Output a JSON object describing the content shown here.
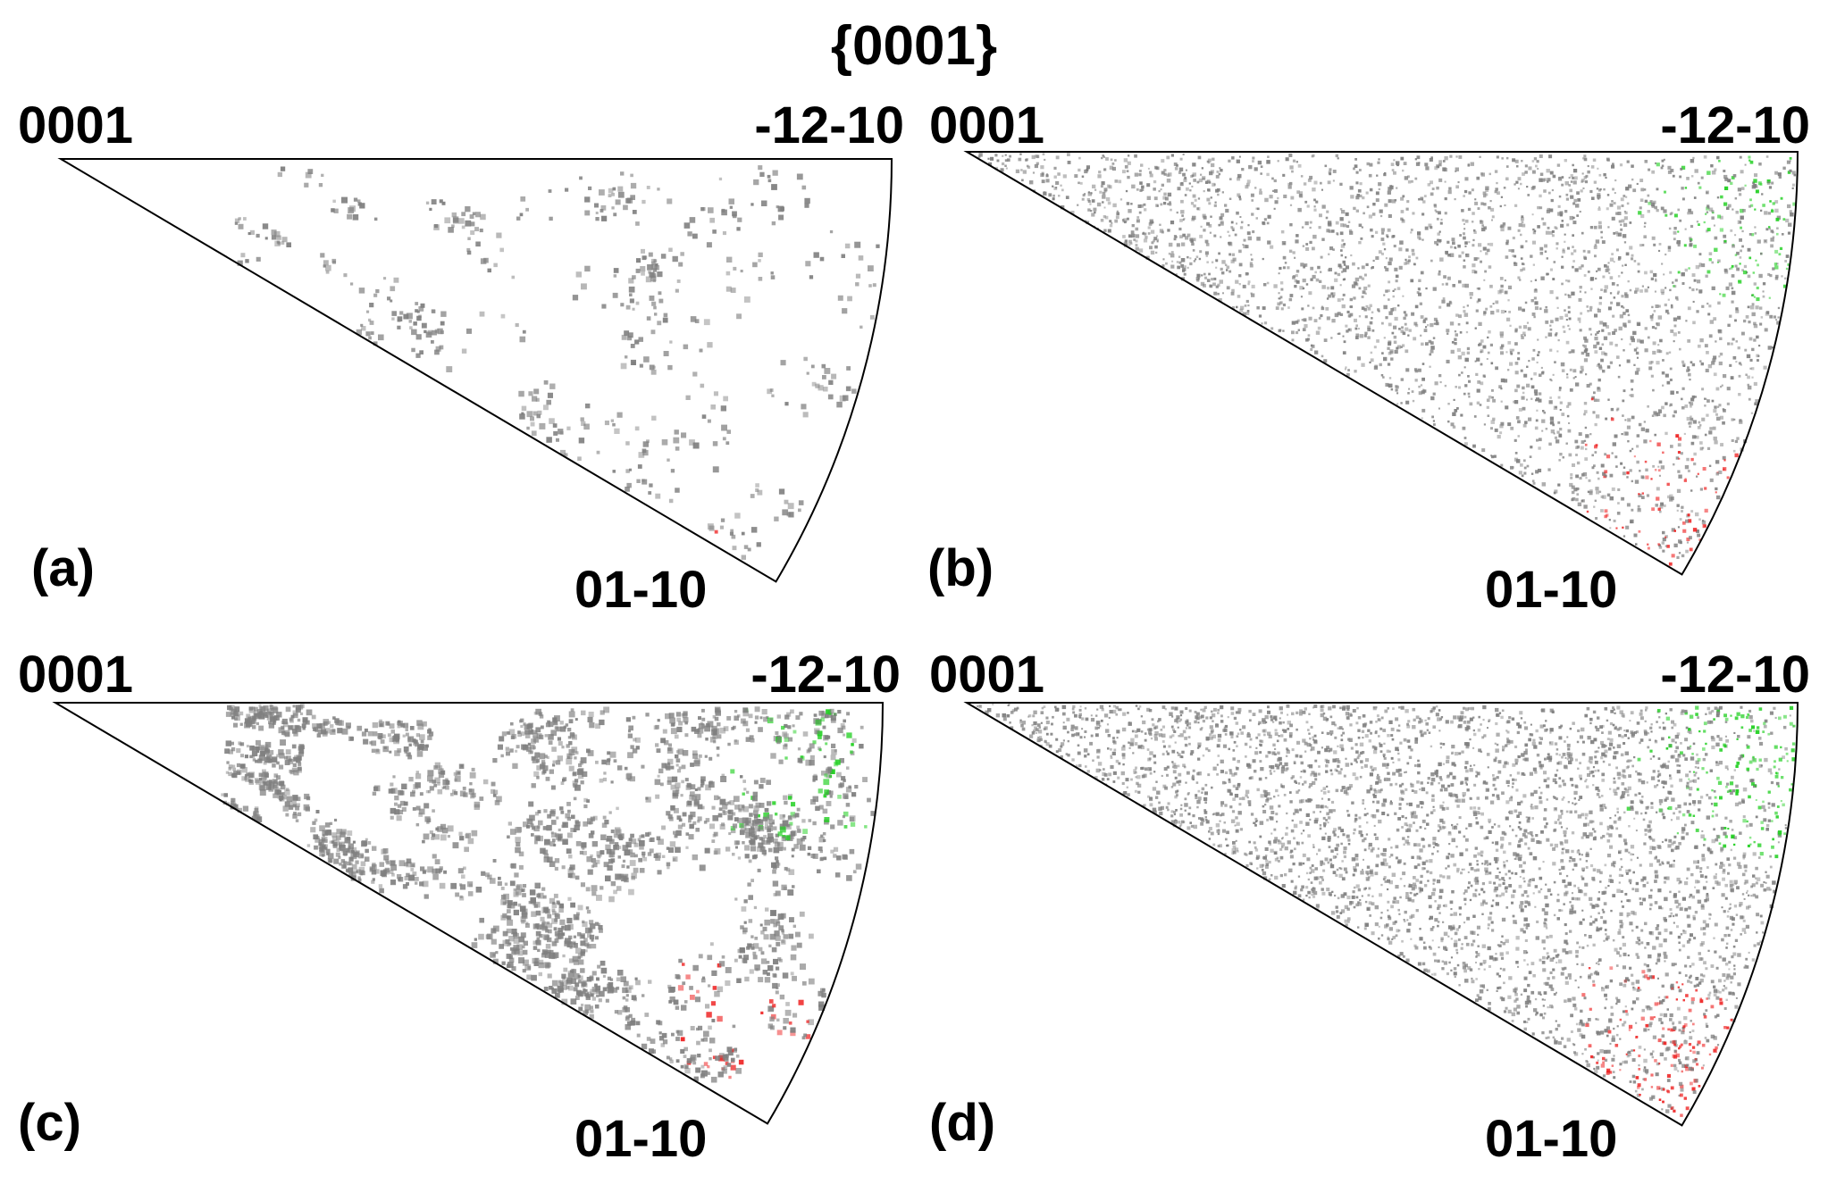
{
  "figure": {
    "title": "{0001}",
    "colors": {
      "background": "#ffffff",
      "outline": "#000000",
      "gray": "#808080",
      "green": "#1fcf1f",
      "red": "#ee2222"
    },
    "panels": [
      {
        "id": "a",
        "label": "(a)",
        "corner_center": "0001",
        "corner_right": "-12-10",
        "corner_bottom": "01-10",
        "density": 0.08,
        "gray_level": 0.55,
        "green_level": 0.02,
        "red_level": 0.03,
        "clumpy": true
      },
      {
        "id": "b",
        "label": "(b)",
        "corner_center": "0001",
        "corner_right": "-12-10",
        "corner_bottom": "01-10",
        "density": 0.55,
        "gray_level": 0.5,
        "green_level": 0.45,
        "red_level": 0.5,
        "clumpy": false
      },
      {
        "id": "c",
        "label": "(c)",
        "corner_center": "0001",
        "corner_right": "-12-10",
        "corner_bottom": "01-10",
        "density": 0.45,
        "gray_level": 0.62,
        "green_level": 0.35,
        "red_level": 0.45,
        "clumpy": true
      },
      {
        "id": "d",
        "label": "(d)",
        "corner_center": "0001",
        "corner_right": "-12-10",
        "corner_bottom": "01-10",
        "density": 0.75,
        "gray_level": 0.45,
        "green_level": 0.7,
        "red_level": 0.65,
        "clumpy": false
      }
    ]
  }
}
